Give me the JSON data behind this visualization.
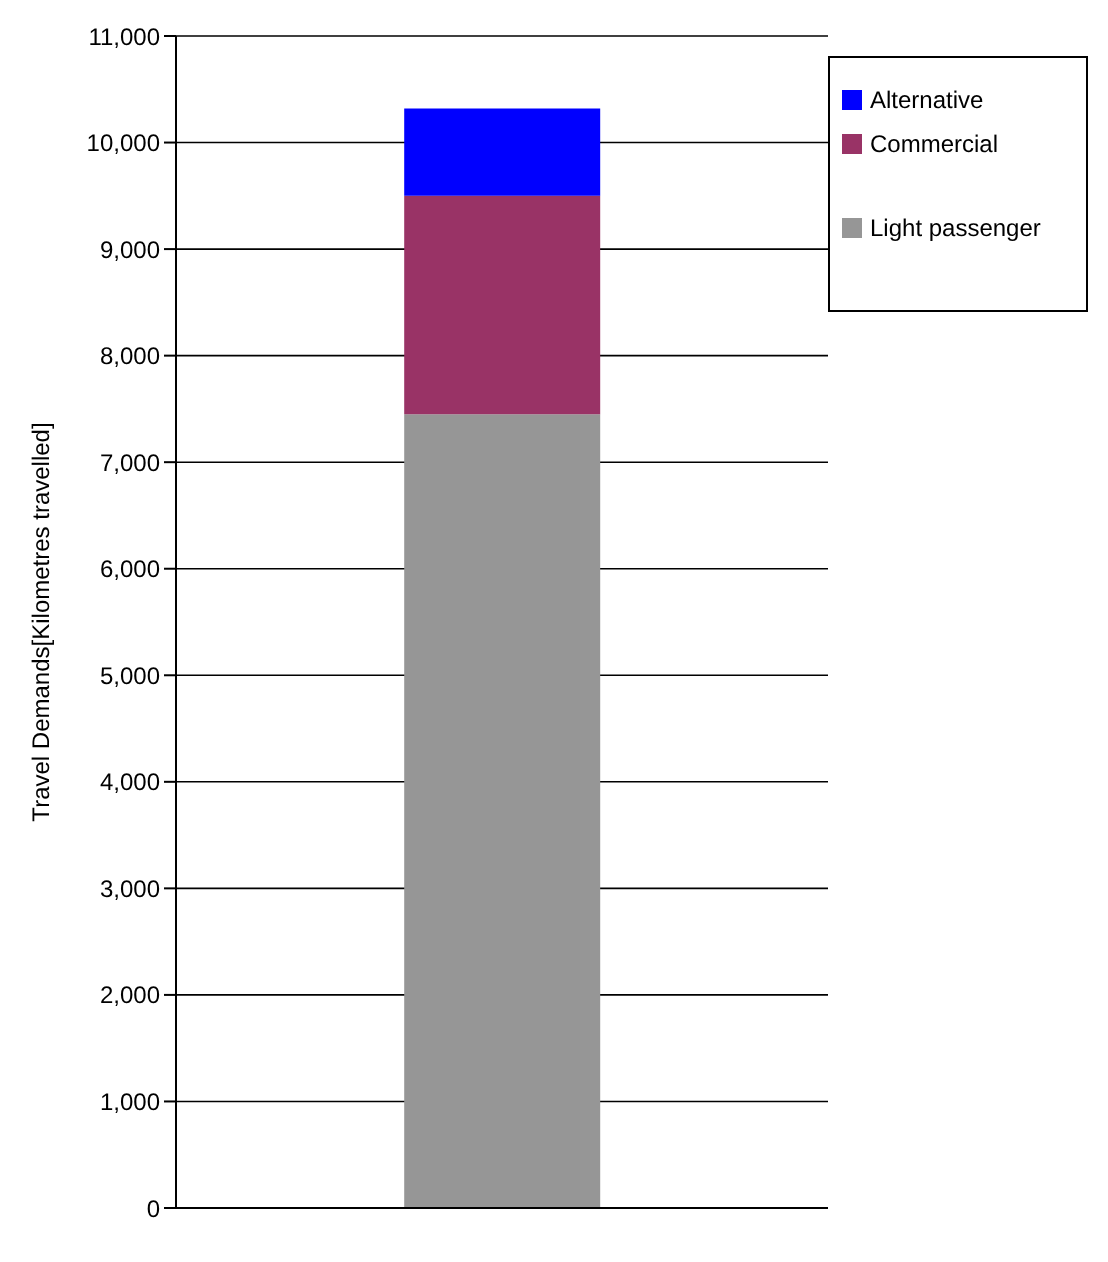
{
  "chart_data": {
    "type": "bar",
    "stacked": true,
    "ylabel": "Travel Demands[Kilometres travelled]",
    "categories": [
      null
    ],
    "series": [
      {
        "name": "Light passenger",
        "color": "#969696",
        "values": [
          7450
        ]
      },
      {
        "name": "Commercial",
        "color": "#993366",
        "values": [
          2050
        ]
      },
      {
        "name": "Alternative",
        "color": "#0000ff",
        "values": [
          820
        ]
      }
    ],
    "ylim": [
      0,
      11000
    ],
    "yticks": [
      0,
      {
        "value": 1000,
        "label": "1,000"
      },
      {
        "value": 2000,
        "label": "2,000"
      },
      {
        "value": 3000,
        "label": "3,000"
      },
      {
        "value": 4000,
        "label": "4,000"
      },
      {
        "value": 5000,
        "label": "5,000"
      },
      {
        "value": 6000,
        "label": "6,000"
      },
      {
        "value": 7000,
        "label": "7,000"
      },
      {
        "value": 8000,
        "label": "8,000"
      },
      {
        "value": 9000,
        "label": "9,000"
      },
      {
        "value": 10000,
        "label": "10,000"
      },
      {
        "value": 11000,
        "label": "11,000"
      }
    ],
    "grid": "y",
    "legend": "top right"
  }
}
